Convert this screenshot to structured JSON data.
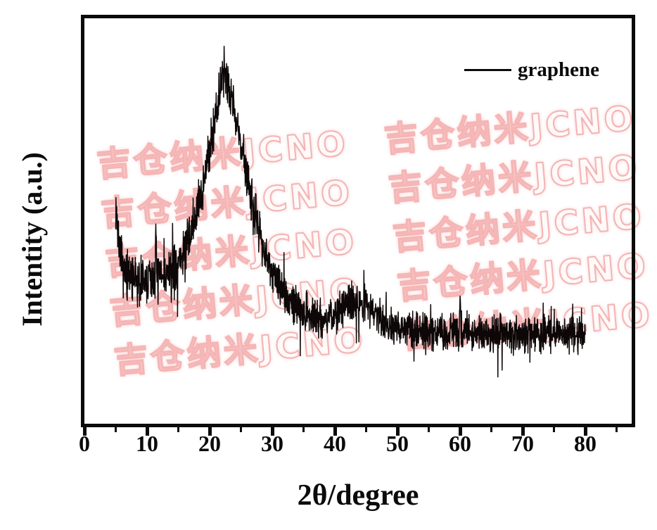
{
  "figure": {
    "background_color": "#ffffff",
    "frame_color": "#0b0b0b",
    "text_color": "#0b0b0b"
  },
  "watermark": {
    "text": "吉仓纳米JCNO",
    "color": "#f2a6a6",
    "rows": 5,
    "repeats_per_row": 3,
    "rotation_deg": -5
  },
  "legend": {
    "label": "graphene",
    "line_color": "#0b0b0b",
    "position": "top-right"
  },
  "axes": {
    "x": {
      "label": "2θ/degree",
      "min": 0,
      "max": 87.4,
      "major_ticks": [
        0,
        10,
        20,
        30,
        40,
        50,
        60,
        70,
        80
      ],
      "minor_ticks": [
        5,
        15,
        25,
        35,
        45,
        55,
        65,
        75,
        85
      ]
    },
    "y": {
      "label": "Intentity (a.u.)",
      "tick_labels": []
    }
  },
  "chart_data": {
    "type": "line",
    "title": "",
    "xlabel": "2θ/degree",
    "ylabel": "Intentity (a.u.)",
    "xlim": [
      0,
      87.4
    ],
    "data_x_range": [
      5,
      80
    ],
    "grid": false,
    "legend_entries": [
      "graphene"
    ],
    "legend_position": "top-right",
    "series": [
      {
        "name": "graphene",
        "color": "#0d0707",
        "description": "noisy XRD trace; broad peak near 2θ≈22.4°, weak hump near 2θ≈43.6°, sharp narrow spikes near 2θ≈5°, 11.4° and 60°",
        "anchors": [
          [
            5,
            55
          ],
          [
            5.4,
            46
          ],
          [
            6,
            39
          ],
          [
            6.5,
            37
          ],
          [
            7,
            36.3
          ],
          [
            8,
            35.2
          ],
          [
            9,
            35
          ],
          [
            10,
            35.2
          ],
          [
            11,
            36.2
          ],
          [
            12,
            36.4
          ],
          [
            13,
            36
          ],
          [
            14,
            37
          ],
          [
            15,
            39.4
          ],
          [
            16,
            42.9
          ],
          [
            17,
            47.2
          ],
          [
            18,
            52.4
          ],
          [
            19,
            59.4
          ],
          [
            20,
            68.1
          ],
          [
            21,
            76.7
          ],
          [
            21.8,
            82.8
          ],
          [
            22.4,
            85.4
          ],
          [
            23,
            83.7
          ],
          [
            23.5,
            81.1
          ],
          [
            24,
            76.7
          ],
          [
            25,
            68.9
          ],
          [
            26,
            61.1
          ],
          [
            27,
            53.3
          ],
          [
            28,
            47.2
          ],
          [
            29,
            42
          ],
          [
            30,
            37.7
          ],
          [
            31,
            34.2
          ],
          [
            32,
            31.6
          ],
          [
            33,
            29.9
          ],
          [
            34,
            28.6
          ],
          [
            35,
            28.1
          ],
          [
            36,
            27.3
          ],
          [
            37,
            26.4
          ],
          [
            38,
            26
          ],
          [
            39,
            26.4
          ],
          [
            40,
            26.7
          ],
          [
            41,
            28.1
          ],
          [
            42,
            29.5
          ],
          [
            43,
            30.4
          ],
          [
            43.6,
            30.7
          ],
          [
            44,
            30.4
          ],
          [
            45,
            29.5
          ],
          [
            46,
            28.1
          ],
          [
            47,
            26.4
          ],
          [
            48,
            25
          ],
          [
            49,
            24.3
          ],
          [
            50,
            23.8
          ],
          [
            52,
            23.4
          ],
          [
            55,
            22.9
          ],
          [
            58,
            22.7
          ],
          [
            60,
            22.8
          ],
          [
            62,
            22.6
          ],
          [
            65,
            22.4
          ],
          [
            70,
            22.2
          ],
          [
            75,
            22.1
          ],
          [
            80,
            22
          ]
        ],
        "noise_profile": [
          [
            5,
            3.8
          ],
          [
            14,
            3.8
          ],
          [
            19,
            3.5
          ],
          [
            26,
            3.5
          ],
          [
            31,
            3.0
          ],
          [
            40,
            2.8
          ],
          [
            45,
            2.7
          ],
          [
            80,
            2.8
          ]
        ],
        "spikes": [
          [
            11.4,
            11
          ],
          [
            22.35,
            5
          ],
          [
            60,
            7.8
          ]
        ]
      }
    ]
  }
}
